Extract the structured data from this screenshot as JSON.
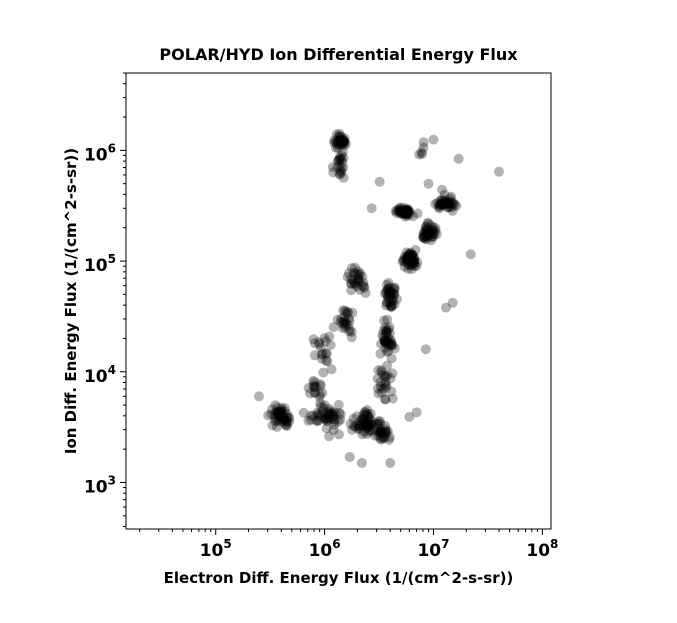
{
  "chart_data": {
    "type": "scatter",
    "title": "POLAR/HYD  Ion Differential Energy Flux",
    "xlabel": "Electron Diff. Energy Flux (1/(cm^2-s-sr))",
    "ylabel": "Ion Diff. Energy Flux (1/(cm^2-s-sr))",
    "xscale": "log",
    "yscale": "log",
    "xlim": [
      15000,
      120000000
    ],
    "ylim": [
      380,
      5000000
    ],
    "xticks": [
      {
        "base": "10",
        "exp": "5",
        "value": 100000
      },
      {
        "base": "10",
        "exp": "6",
        "value": 1000000
      },
      {
        "base": "10",
        "exp": "7",
        "value": 10000000
      },
      {
        "base": "10",
        "exp": "8",
        "value": 100000000
      }
    ],
    "yticks": [
      {
        "base": "10",
        "exp": "3",
        "value": 1000
      },
      {
        "base": "10",
        "exp": "4",
        "value": 10000
      },
      {
        "base": "10",
        "exp": "5",
        "value": 100000
      },
      {
        "base": "10",
        "exp": "6",
        "value": 1000000
      }
    ],
    "grid": false,
    "legend": "none",
    "marker_color": "#000000",
    "marker_opacity": 0.3,
    "clusters": [
      {
        "x": 1400000,
        "y": 1200000,
        "count": 35,
        "sx": 0.05,
        "sy": 0.05
      },
      {
        "x": 1350000,
        "y": 800000,
        "count": 15,
        "sx": 0.07,
        "sy": 0.08
      },
      {
        "x": 1300000,
        "y": 620000,
        "count": 6,
        "sx": 0.05,
        "sy": 0.04
      },
      {
        "x": 8000000,
        "y": 1000000,
        "count": 5,
        "sx": 0.06,
        "sy": 0.05
      },
      {
        "x": 5500000,
        "y": 280000,
        "count": 45,
        "sx": 0.07,
        "sy": 0.03
      },
      {
        "x": 13000000,
        "y": 330000,
        "count": 40,
        "sx": 0.08,
        "sy": 0.05
      },
      {
        "x": 9000000,
        "y": 180000,
        "count": 40,
        "sx": 0.07,
        "sy": 0.06
      },
      {
        "x": 6000000,
        "y": 100000,
        "count": 50,
        "sx": 0.06,
        "sy": 0.07
      },
      {
        "x": 4000000,
        "y": 50000,
        "count": 40,
        "sx": 0.05,
        "sy": 0.1
      },
      {
        "x": 3700000,
        "y": 20000,
        "count": 40,
        "sx": 0.05,
        "sy": 0.12
      },
      {
        "x": 3600000,
        "y": 8000,
        "count": 25,
        "sx": 0.06,
        "sy": 0.12
      },
      {
        "x": 2000000,
        "y": 70000,
        "count": 30,
        "sx": 0.07,
        "sy": 0.1
      },
      {
        "x": 1500000,
        "y": 30000,
        "count": 25,
        "sx": 0.08,
        "sy": 0.12
      },
      {
        "x": 1000000,
        "y": 15000,
        "count": 20,
        "sx": 0.1,
        "sy": 0.15
      },
      {
        "x": 400000,
        "y": 4000,
        "count": 50,
        "sx": 0.09,
        "sy": 0.07
      },
      {
        "x": 1000000,
        "y": 4000,
        "count": 50,
        "sx": 0.15,
        "sy": 0.09
      },
      {
        "x": 2500000,
        "y": 3500,
        "count": 60,
        "sx": 0.1,
        "sy": 0.08
      },
      {
        "x": 3500000,
        "y": 2700,
        "count": 25,
        "sx": 0.05,
        "sy": 0.07
      },
      {
        "x": 800000,
        "y": 7000,
        "count": 15,
        "sx": 0.12,
        "sy": 0.12
      }
    ],
    "outliers": [
      [
        40000000,
        640000
      ],
      [
        17000000,
        840000
      ],
      [
        10000000,
        1250000
      ],
      [
        12000000,
        440000
      ],
      [
        22000000,
        115000
      ],
      [
        15000000,
        42000
      ],
      [
        13000000,
        38000
      ],
      [
        8500000,
        16000
      ],
      [
        7000000,
        4300
      ],
      [
        6000000,
        3900
      ],
      [
        1700000,
        1700
      ],
      [
        250000,
        6000
      ],
      [
        3200000,
        520000
      ],
      [
        9000000,
        500000
      ],
      [
        2700000,
        300000
      ],
      [
        4000000,
        1500
      ],
      [
        2200000,
        1500
      ],
      [
        1100000,
        2600
      ]
    ]
  }
}
